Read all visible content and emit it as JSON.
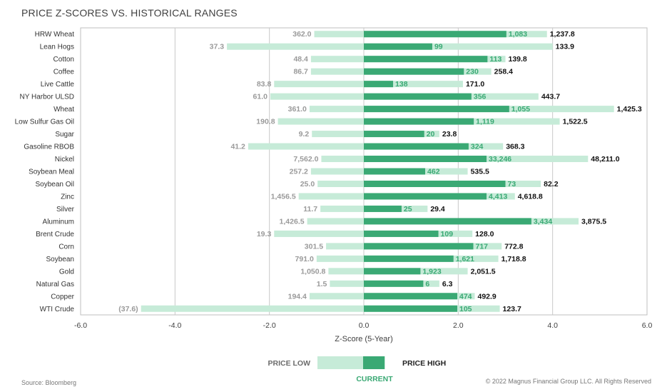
{
  "chart_data": {
    "type": "bar",
    "title": "PRICE Z-SCORES VS. HISTORICAL RANGES",
    "xlabel": "Z-Score (5-Year)",
    "xlim": [
      -6,
      6
    ],
    "x_ticks": [
      "-6.0",
      "-4.0",
      "-2.0",
      "0.0",
      "2.0",
      "4.0",
      "6.0"
    ],
    "grid": true,
    "colors": {
      "range": "#c6ebd8",
      "current": "#3aa974",
      "current_label": "#3aa974",
      "low_label": "#9a9a9a",
      "high_label": "#111111"
    },
    "categories": [
      "HRW Wheat",
      "Lean Hogs",
      "Cotton",
      "Coffee",
      "Live Cattle",
      "NY Harbor ULSD",
      "Wheat",
      "Low Sulfur Gas Oil",
      "Sugar",
      "Gasoline RBOB",
      "Nickel",
      "Soybean Meal",
      "Soybean Oil",
      "Zinc",
      "Silver",
      "Aluminum",
      "Brent Crude",
      "Corn",
      "Soybean",
      "Gold",
      "Natural Gas",
      "Copper",
      "WTI Crude"
    ],
    "series": [
      {
        "name": "PRICE LOW",
        "z_values": [
          -1.05,
          -2.9,
          -1.12,
          -1.12,
          -1.9,
          -1.98,
          -1.15,
          -1.82,
          -1.1,
          -2.45,
          -0.9,
          -1.12,
          -0.98,
          -1.38,
          -0.92,
          -1.2,
          -1.9,
          -0.8,
          -1.0,
          -0.75,
          -0.72,
          -1.15,
          -4.72
        ],
        "labels": [
          "362.0",
          "37.3",
          "48.4",
          "86.7",
          "83.8",
          "61.0",
          "361.0",
          "190.8",
          "9.2",
          "41.2",
          "7,562.0",
          "257.2",
          "25.0",
          "1,456.5",
          "11.7",
          "1,426.5",
          "19.3",
          "301.5",
          "791.0",
          "1,050.8",
          "1.5",
          "194.4",
          "(37.6)"
        ]
      },
      {
        "name": "CURRENT",
        "z_values": [
          3.02,
          1.45,
          2.62,
          2.12,
          0.62,
          2.28,
          3.08,
          2.33,
          1.28,
          2.22,
          2.6,
          1.3,
          3.0,
          2.6,
          0.8,
          3.55,
          1.58,
          2.32,
          1.9,
          1.2,
          1.26,
          1.98,
          1.98
        ],
        "labels": [
          "1,083",
          "99",
          "113",
          "230",
          "138",
          "356",
          "1,055",
          "1,119",
          "20",
          "324",
          "33,246",
          "462",
          "73",
          "4,413",
          "25",
          "3,434",
          "109",
          "717",
          "1,621",
          "1,923",
          "6",
          "474",
          "105"
        ]
      },
      {
        "name": "PRICE HIGH",
        "z_values": [
          3.88,
          4.0,
          3.0,
          2.7,
          2.1,
          3.7,
          5.3,
          4.15,
          1.6,
          2.95,
          4.75,
          2.2,
          3.75,
          3.2,
          1.35,
          4.55,
          2.3,
          2.92,
          2.85,
          2.2,
          1.6,
          2.35,
          2.88
        ],
        "labels": [
          "1,237.8",
          "133.9",
          "139.8",
          "258.4",
          "171.0",
          "443.7",
          "1,425.3",
          "1,522.5",
          "23.8",
          "368.3",
          "48,211.0",
          "535.5",
          "82.2",
          "4,618.8",
          "29.4",
          "3,875.5",
          "128.0",
          "772.8",
          "1,718.8",
          "2,051.5",
          "6.3",
          "492.9",
          "123.7"
        ]
      }
    ]
  },
  "legend": {
    "low_label": "PRICE LOW",
    "high_label": "PRICE HIGH",
    "current_label": "CURRENT"
  },
  "footer": {
    "source": "Source: Bloomberg",
    "copyright": "© 2022 Magnus Financial Group LLC. All Rights Reserved"
  }
}
